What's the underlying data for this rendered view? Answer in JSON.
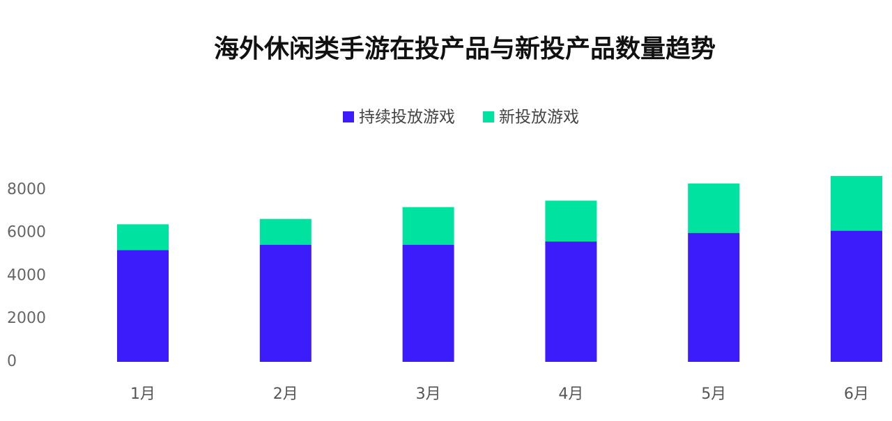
{
  "chart_data": {
    "type": "stacked_bar",
    "title": "海外休闲类手游在投产品与新投产品数量趋势",
    "categories": [
      "1月",
      "2月",
      "3月",
      "4月",
      "5月",
      "6月"
    ],
    "series": [
      {
        "name": "持续投放游戏",
        "color": "#3d1cfb",
        "values": [
          5200,
          5450,
          5450,
          5600,
          6000,
          6100
        ]
      },
      {
        "name": "新投放游戏",
        "color": "#00e3a0",
        "values": [
          1200,
          1200,
          1750,
          1900,
          2300,
          2550
        ]
      }
    ],
    "ylim": [
      0,
      9000
    ],
    "yticks": [
      0,
      2000,
      4000,
      6000,
      8000
    ],
    "grid": false,
    "legend": "top"
  }
}
